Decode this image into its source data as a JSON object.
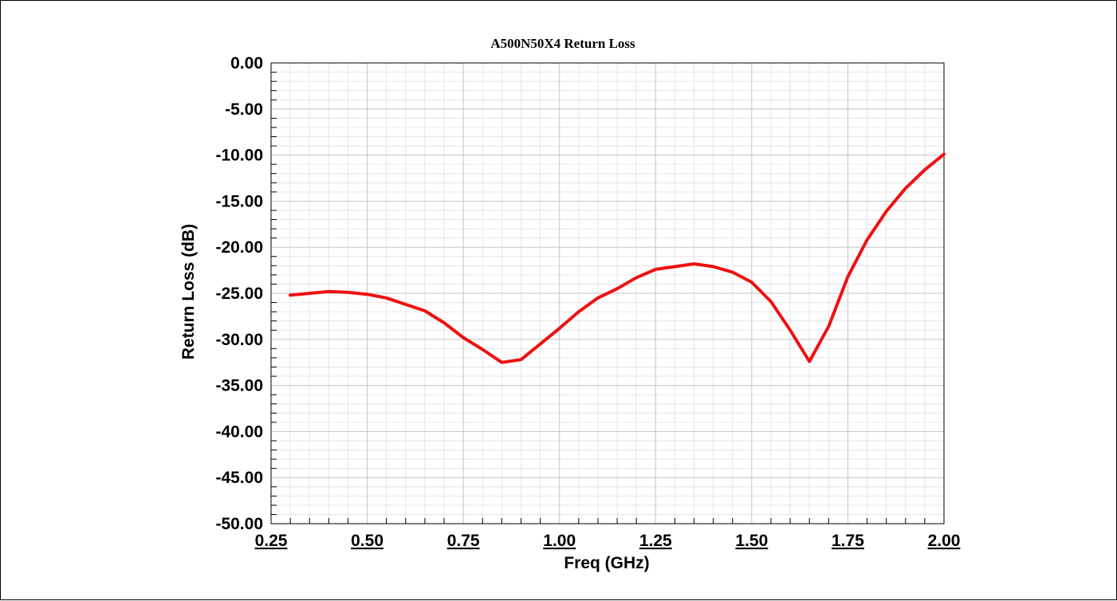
{
  "chart_data": {
    "type": "line",
    "title": "A500N50X4 Return Loss",
    "xlabel": "Freq (GHz)",
    "ylabel": "Return Loss (dB)",
    "xlim": [
      0.25,
      2.0
    ],
    "ylim": [
      -50.0,
      0.0
    ],
    "x_ticks": [
      "0.25",
      "0.50",
      "0.75",
      "1.00",
      "1.25",
      "1.50",
      "1.75",
      "2.00"
    ],
    "y_ticks": [
      "0.00",
      "-5.00",
      "-10.00",
      "-15.00",
      "-20.00",
      "-25.00",
      "-30.00",
      "-35.00",
      "-40.00",
      "-45.00",
      "-50.00"
    ],
    "grid": true,
    "series": [
      {
        "color": "#ee1111",
        "x": [
          0.3,
          0.35,
          0.4,
          0.45,
          0.5,
          0.55,
          0.6,
          0.65,
          0.7,
          0.75,
          0.8,
          0.85,
          0.9,
          0.95,
          1.0,
          1.05,
          1.1,
          1.15,
          1.2,
          1.25,
          1.3,
          1.35,
          1.4,
          1.45,
          1.5,
          1.55,
          1.6,
          1.65,
          1.7,
          1.75,
          1.8,
          1.85,
          1.9,
          1.95,
          2.0
        ],
        "y": [
          -25.2,
          -25.0,
          -24.8,
          -24.9,
          -25.1,
          -25.5,
          -26.2,
          -26.9,
          -28.2,
          -29.8,
          -31.1,
          -32.5,
          -32.2,
          -30.5,
          -28.8,
          -27.0,
          -25.5,
          -24.5,
          -23.3,
          -22.4,
          -22.1,
          -21.8,
          -22.1,
          -22.7,
          -23.8,
          -25.9,
          -29.0,
          -32.4,
          -28.6,
          -23.2,
          -19.2,
          -16.1,
          -13.6,
          -11.6,
          -9.9
        ]
      }
    ]
  }
}
